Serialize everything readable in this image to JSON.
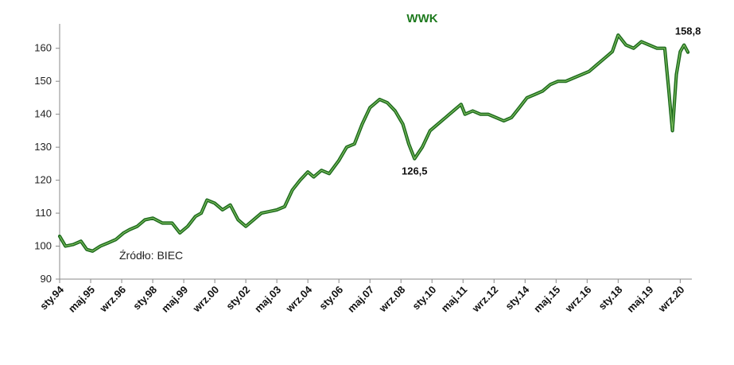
{
  "chart_data": {
    "type": "line",
    "title": "WWK",
    "source_note": "Źródło: BIEC",
    "ylim": [
      90,
      165
    ],
    "yticks": [
      90,
      100,
      110,
      120,
      130,
      140,
      150,
      160
    ],
    "xlim": [
      "1994-01",
      "2021-03"
    ],
    "x_tick_labels": [
      {
        "label": "sty.94",
        "date": "1994-01"
      },
      {
        "label": "maj.95",
        "date": "1995-05"
      },
      {
        "label": "wrz.96",
        "date": "1996-09"
      },
      {
        "label": "sty.98",
        "date": "1998-01"
      },
      {
        "label": "maj.99",
        "date": "1999-05"
      },
      {
        "label": "wrz.00",
        "date": "2000-09"
      },
      {
        "label": "sty.02",
        "date": "2002-01"
      },
      {
        "label": "maj.03",
        "date": "2003-05"
      },
      {
        "label": "wrz.04",
        "date": "2004-09"
      },
      {
        "label": "sty.06",
        "date": "2006-01"
      },
      {
        "label": "maj.07",
        "date": "2007-05"
      },
      {
        "label": "wrz.08",
        "date": "2008-09"
      },
      {
        "label": "sty.10",
        "date": "2010-01"
      },
      {
        "label": "maj.11",
        "date": "2011-05"
      },
      {
        "label": "wrz.12",
        "date": "2012-09"
      },
      {
        "label": "sty.14",
        "date": "2014-01"
      },
      {
        "label": "maj.15",
        "date": "2015-05"
      },
      {
        "label": "wrz.16",
        "date": "2016-09"
      },
      {
        "label": "sty.18",
        "date": "2018-01"
      },
      {
        "label": "maj.19",
        "date": "2019-05"
      },
      {
        "label": "wrz.20",
        "date": "2020-09"
      }
    ],
    "grid": false,
    "series": [
      {
        "color": "#1e6b1e",
        "points": [
          [
            "1994-01",
            103
          ],
          [
            "1994-04",
            100
          ],
          [
            "1994-08",
            100.5
          ],
          [
            "1994-12",
            101.5
          ],
          [
            "1995-03",
            99
          ],
          [
            "1995-06",
            98.5
          ],
          [
            "1995-10",
            100
          ],
          [
            "1996-02",
            101
          ],
          [
            "1996-06",
            102
          ],
          [
            "1996-10",
            104
          ],
          [
            "1997-01",
            105
          ],
          [
            "1997-05",
            106
          ],
          [
            "1997-09",
            108
          ],
          [
            "1998-01",
            108.5
          ],
          [
            "1998-06",
            107
          ],
          [
            "1998-11",
            107
          ],
          [
            "1999-03",
            104
          ],
          [
            "1999-07",
            106
          ],
          [
            "1999-11",
            109
          ],
          [
            "2000-02",
            110
          ],
          [
            "2000-05",
            114
          ],
          [
            "2000-09",
            113
          ],
          [
            "2001-01",
            111
          ],
          [
            "2001-05",
            112.5
          ],
          [
            "2001-09",
            108
          ],
          [
            "2002-01",
            106
          ],
          [
            "2002-05",
            108
          ],
          [
            "2002-09",
            110
          ],
          [
            "2003-01",
            110.5
          ],
          [
            "2003-05",
            111
          ],
          [
            "2003-09",
            112
          ],
          [
            "2004-01",
            117
          ],
          [
            "2004-05",
            120
          ],
          [
            "2004-09",
            122.5
          ],
          [
            "2004-12",
            121
          ],
          [
            "2005-04",
            123
          ],
          [
            "2005-08",
            122
          ],
          [
            "2006-01",
            126
          ],
          [
            "2006-05",
            130
          ],
          [
            "2006-09",
            131
          ],
          [
            "2007-01",
            137
          ],
          [
            "2007-05",
            142
          ],
          [
            "2007-10",
            144.5
          ],
          [
            "2008-02",
            143.5
          ],
          [
            "2008-06",
            141
          ],
          [
            "2008-10",
            137
          ],
          [
            "2009-01",
            131
          ],
          [
            "2009-04",
            126.5
          ],
          [
            "2009-08",
            130
          ],
          [
            "2009-12",
            135
          ],
          [
            "2010-04",
            137
          ],
          [
            "2010-08",
            139
          ],
          [
            "2010-12",
            141
          ],
          [
            "2011-04",
            143
          ],
          [
            "2011-06",
            140
          ],
          [
            "2011-10",
            141
          ],
          [
            "2012-02",
            140
          ],
          [
            "2012-06",
            140
          ],
          [
            "2012-10",
            139
          ],
          [
            "2013-02",
            138
          ],
          [
            "2013-06",
            139
          ],
          [
            "2013-10",
            142
          ],
          [
            "2014-02",
            145
          ],
          [
            "2014-06",
            146
          ],
          [
            "2014-10",
            147
          ],
          [
            "2015-02",
            149
          ],
          [
            "2015-06",
            150
          ],
          [
            "2015-10",
            150
          ],
          [
            "2016-02",
            151
          ],
          [
            "2016-06",
            152
          ],
          [
            "2016-10",
            153
          ],
          [
            "2017-02",
            155
          ],
          [
            "2017-06",
            157
          ],
          [
            "2017-10",
            159
          ],
          [
            "2018-01",
            164
          ],
          [
            "2018-05",
            161
          ],
          [
            "2018-09",
            160
          ],
          [
            "2019-01",
            162
          ],
          [
            "2019-05",
            161
          ],
          [
            "2019-09",
            160
          ],
          [
            "2020-01",
            160
          ],
          [
            "2020-03",
            148
          ],
          [
            "2020-05",
            135
          ],
          [
            "2020-07",
            152
          ],
          [
            "2020-09",
            159
          ],
          [
            "2020-11",
            161
          ],
          [
            "2021-01",
            158.8
          ]
        ]
      }
    ],
    "annotations": [
      {
        "text": "126,5",
        "date": "2009-04",
        "value": 126.5,
        "position": "below"
      },
      {
        "text": "158,8",
        "date": "2021-01",
        "value": 158.8,
        "position": "above"
      }
    ]
  }
}
